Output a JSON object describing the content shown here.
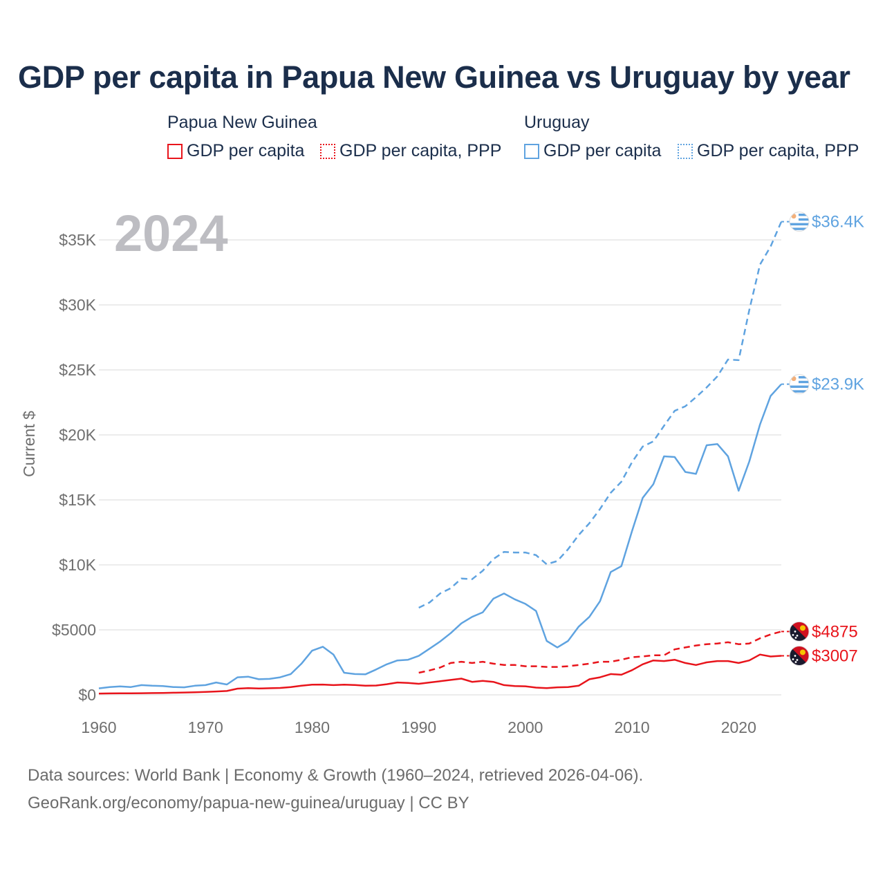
{
  "title": "GDP per capita in Papua New Guinea vs Uruguay by year",
  "colors": {
    "png": "#e8141b",
    "uruguay": "#5fa3e0",
    "title": "#1b2e4b",
    "grid": "#e6e6e6",
    "year": "#bdbdc2"
  },
  "legend": {
    "groups": [
      {
        "title": "Papua New Guinea",
        "items": [
          "GDP per capita",
          "GDP per capita, PPP"
        ]
      },
      {
        "title": "Uruguay",
        "items": [
          "GDP per capita",
          "GDP per capita, PPP"
        ]
      }
    ]
  },
  "footer": {
    "line1": "Data sources: World Bank | Economy & Growth (1960–2024, retrieved 2026-04-06).",
    "line2": "GeoRank.org/economy/papua-new-guinea/uruguay | CC BY"
  },
  "chart_data": {
    "type": "line",
    "current_year": "2024",
    "ylabel": "Current $",
    "xlabel": "",
    "xlim": [
      1960,
      2024
    ],
    "ylim": [
      0,
      37500
    ],
    "x_ticks": [
      {
        "value": 1960,
        "label": "1960"
      },
      {
        "value": 1970,
        "label": "1970"
      },
      {
        "value": 1980,
        "label": "1980"
      },
      {
        "value": 1990,
        "label": "1990"
      },
      {
        "value": 2000,
        "label": "2000"
      },
      {
        "value": 2010,
        "label": "2010"
      },
      {
        "value": 2020,
        "label": "2020"
      }
    ],
    "y_ticks": [
      {
        "value": 0,
        "label": "$0"
      },
      {
        "value": 5000,
        "label": "$5000"
      },
      {
        "value": 10000,
        "label": "$10K"
      },
      {
        "value": 15000,
        "label": "$15K"
      },
      {
        "value": 20000,
        "label": "$20K"
      },
      {
        "value": 25000,
        "label": "$25K"
      },
      {
        "value": 30000,
        "label": "$30K"
      },
      {
        "value": 35000,
        "label": "$35K"
      }
    ],
    "series": [
      {
        "name": "Uruguay GDP per capita",
        "country": "uruguay",
        "dashed": false,
        "end_label": "$23.9K",
        "start_year": 1960,
        "values": [
          500,
          600,
          650,
          600,
          750,
          700,
          680,
          600,
          580,
          700,
          750,
          950,
          800,
          1350,
          1400,
          1200,
          1230,
          1350,
          1600,
          2400,
          3400,
          3700,
          3100,
          1700,
          1600,
          1580,
          1950,
          2350,
          2650,
          2700,
          3000,
          3550,
          4100,
          4750,
          5500,
          6000,
          6350,
          7400,
          7800,
          7350,
          7000,
          6450,
          4150,
          3650,
          4150,
          5250,
          6000,
          7200,
          9450,
          9900,
          12600,
          15150,
          16200,
          18350,
          18300,
          17150,
          17000,
          19200,
          19300,
          18350,
          15700,
          17950,
          20800,
          23000,
          23900
        ]
      },
      {
        "name": "Uruguay GDP per capita, PPP",
        "country": "uruguay",
        "dashed": true,
        "end_label": "$36.4K",
        "start_year": 1990,
        "values": [
          6700,
          7100,
          7800,
          8200,
          8950,
          8900,
          9550,
          10450,
          11000,
          10950,
          10950,
          10750,
          10050,
          10300,
          11200,
          12300,
          13200,
          14300,
          15550,
          16400,
          17900,
          19100,
          19500,
          20700,
          21850,
          22200,
          22900,
          23650,
          24500,
          25800,
          25750,
          29600,
          33100,
          34500,
          36400
        ]
      },
      {
        "name": "Papua New Guinea GDP per capita",
        "country": "png",
        "dashed": false,
        "end_label": "$3007",
        "start_year": 1960,
        "values": [
          100,
          110,
          115,
          120,
          130,
          140,
          150,
          165,
          180,
          200,
          230,
          260,
          300,
          480,
          520,
          490,
          510,
          530,
          600,
          700,
          780,
          790,
          750,
          780,
          760,
          700,
          720,
          820,
          950,
          920,
          850,
          950,
          1050,
          1150,
          1250,
          1000,
          1080,
          1000,
          750,
          680,
          660,
          560,
          520,
          580,
          600,
          700,
          1200,
          1350,
          1600,
          1550,
          1900,
          2350,
          2650,
          2600,
          2700,
          2450,
          2300,
          2500,
          2600,
          2600,
          2450,
          2650,
          3100,
          2950,
          3007
        ]
      },
      {
        "name": "Papua New Guinea GDP per capita, PPP",
        "country": "png",
        "dashed": true,
        "end_label": "$4875",
        "start_year": 1990,
        "values": [
          1700,
          1880,
          2100,
          2450,
          2550,
          2450,
          2550,
          2400,
          2300,
          2300,
          2200,
          2200,
          2150,
          2150,
          2200,
          2300,
          2400,
          2550,
          2550,
          2700,
          2900,
          2950,
          3050,
          3050,
          3500,
          3650,
          3800,
          3900,
          3950,
          4050,
          3900,
          3950,
          4350,
          4650,
          4875
        ]
      }
    ]
  }
}
